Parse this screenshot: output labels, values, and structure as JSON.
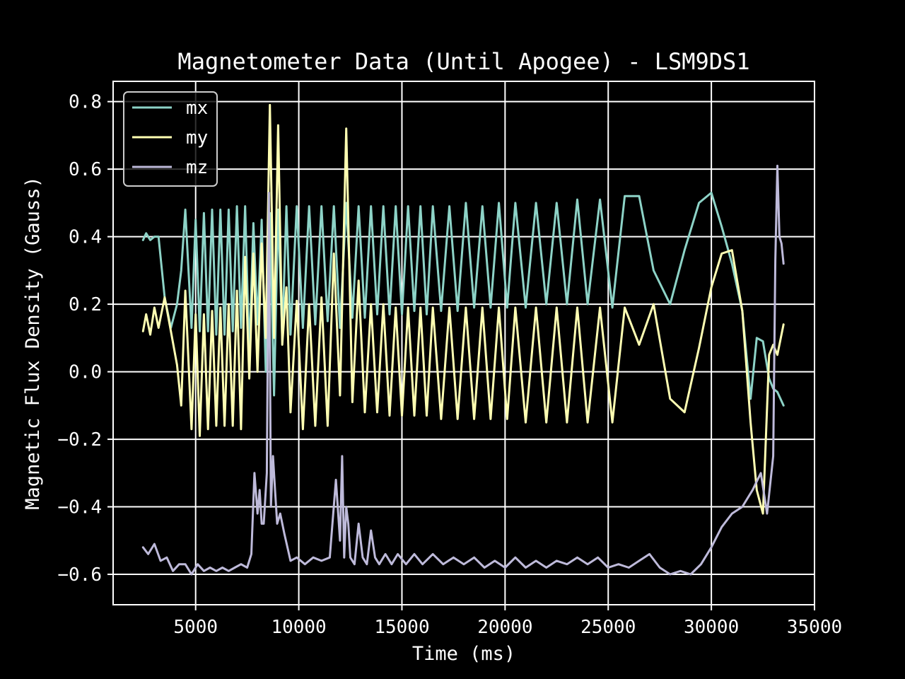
{
  "chart_data": {
    "type": "line",
    "title": "Magnetometer Data (Until Apogee) - LSM9DS1",
    "xlabel": "Time (ms)",
    "ylabel": "Magnetic Flux Density (Gauss)",
    "xlim": [
      1000,
      35000
    ],
    "ylim": [
      -0.69,
      0.86
    ],
    "grid": true,
    "legend_position": "top-left",
    "background": "#000000",
    "xticks": [
      {
        "value": 5000,
        "label": "5000"
      },
      {
        "value": 10000,
        "label": "10000"
      },
      {
        "value": 15000,
        "label": "15000"
      },
      {
        "value": 20000,
        "label": "20000"
      },
      {
        "value": 25000,
        "label": "25000"
      },
      {
        "value": 30000,
        "label": "30000"
      },
      {
        "value": 35000,
        "label": "35000"
      }
    ],
    "yticks": [
      {
        "value": 0.8,
        "label": "0.8"
      },
      {
        "value": 0.6,
        "label": "0.6"
      },
      {
        "value": 0.4,
        "label": "0.4"
      },
      {
        "value": 0.2,
        "label": "0.2"
      },
      {
        "value": 0.0,
        "label": "0.0"
      },
      {
        "value": -0.2,
        "label": "−0.2"
      },
      {
        "value": -0.4,
        "label": "−0.4"
      },
      {
        "value": -0.6,
        "label": "−0.6"
      }
    ],
    "series": [
      {
        "name": "mx",
        "color": "#8dd3c7",
        "x": [
          2450,
          2600,
          2800,
          3000,
          3200,
          3500,
          3800,
          4100,
          4300,
          4500,
          4800,
          5000,
          5200,
          5400,
          5600,
          5800,
          6000,
          6200,
          6400,
          6600,
          6800,
          7000,
          7200,
          7400,
          7600,
          7800,
          8000,
          8200,
          8400,
          8600,
          8800,
          9000,
          9200,
          9400,
          9600,
          9900,
          10200,
          10500,
          10800,
          11100,
          11400,
          11700,
          12000,
          12300,
          12600,
          12900,
          13200,
          13500,
          13800,
          14100,
          14400,
          14700,
          15000,
          15300,
          15600,
          15900,
          16200,
          16500,
          16900,
          17300,
          17700,
          18100,
          18500,
          18900,
          19300,
          19700,
          20100,
          20500,
          21000,
          21500,
          22000,
          22500,
          23000,
          23500,
          24000,
          24600,
          25200,
          25800,
          26500,
          27200,
          28000,
          28700,
          29400,
          30000,
          30500,
          31000,
          31500,
          31900,
          32200,
          32500,
          32800,
          33000,
          33200,
          33500
        ],
        "y": [
          0.39,
          0.41,
          0.39,
          0.4,
          0.4,
          0.22,
          0.13,
          0.2,
          0.3,
          0.48,
          0.13,
          0.45,
          0.12,
          0.47,
          0.12,
          0.48,
          0.11,
          0.48,
          0.11,
          0.48,
          0.12,
          0.49,
          0.13,
          0.49,
          0.05,
          0.44,
          0.14,
          0.45,
          0.0,
          0.47,
          -0.07,
          0.48,
          0.1,
          0.49,
          0.11,
          0.49,
          0.13,
          0.49,
          0.14,
          0.49,
          0.15,
          0.49,
          0.13,
          0.5,
          0.16,
          0.49,
          0.16,
          0.49,
          0.17,
          0.49,
          0.17,
          0.49,
          0.17,
          0.49,
          0.18,
          0.49,
          0.17,
          0.49,
          0.18,
          0.49,
          0.18,
          0.5,
          0.19,
          0.49,
          0.19,
          0.5,
          0.19,
          0.5,
          0.19,
          0.5,
          0.2,
          0.5,
          0.2,
          0.51,
          0.2,
          0.51,
          0.19,
          0.52,
          0.52,
          0.3,
          0.2,
          0.36,
          0.5,
          0.53,
          0.43,
          0.32,
          0.18,
          -0.08,
          0.1,
          0.09,
          -0.02,
          -0.05,
          -0.06,
          -0.1
        ]
      },
      {
        "name": "my",
        "color": "#ffffb3",
        "x": [
          2450,
          2600,
          2800,
          3000,
          3200,
          3500,
          3800,
          4100,
          4300,
          4500,
          4800,
          5000,
          5200,
          5400,
          5600,
          5800,
          6000,
          6200,
          6400,
          6600,
          6800,
          7000,
          7200,
          7400,
          7600,
          7800,
          8000,
          8200,
          8400,
          8600,
          8800,
          9000,
          9200,
          9400,
          9600,
          9900,
          10200,
          10500,
          10800,
          11100,
          11400,
          11700,
          12000,
          12300,
          12600,
          12900,
          13200,
          13500,
          13800,
          14100,
          14400,
          14700,
          15000,
          15300,
          15600,
          15900,
          16200,
          16500,
          16900,
          17300,
          17700,
          18100,
          18500,
          18900,
          19300,
          19700,
          20100,
          20500,
          21000,
          21500,
          22000,
          22500,
          23000,
          23500,
          24000,
          24600,
          25200,
          25800,
          26500,
          27200,
          28000,
          28700,
          29400,
          30000,
          30500,
          31000,
          31500,
          31900,
          32200,
          32500,
          32800,
          33000,
          33200,
          33500
        ],
        "y": [
          0.12,
          0.17,
          0.11,
          0.19,
          0.13,
          0.22,
          0.12,
          0.02,
          -0.1,
          0.24,
          -0.17,
          0.17,
          -0.19,
          0.17,
          -0.17,
          0.18,
          -0.16,
          0.19,
          -0.16,
          0.2,
          -0.16,
          0.24,
          -0.17,
          0.34,
          -0.02,
          0.35,
          0.0,
          0.38,
          0.1,
          0.79,
          0.1,
          0.73,
          0.08,
          0.25,
          -0.12,
          0.21,
          -0.17,
          0.2,
          -0.16,
          0.22,
          -0.16,
          0.35,
          -0.07,
          0.72,
          -0.09,
          0.27,
          -0.12,
          0.2,
          -0.12,
          0.2,
          -0.13,
          0.19,
          -0.13,
          0.19,
          -0.13,
          0.19,
          -0.13,
          0.19,
          -0.14,
          0.19,
          -0.14,
          0.19,
          -0.14,
          0.19,
          -0.14,
          0.19,
          -0.14,
          0.19,
          -0.15,
          0.19,
          -0.15,
          0.19,
          -0.15,
          0.19,
          -0.15,
          0.19,
          -0.15,
          0.19,
          0.08,
          0.2,
          -0.08,
          -0.12,
          0.07,
          0.25,
          0.35,
          0.36,
          0.18,
          -0.15,
          -0.35,
          -0.42,
          0.05,
          0.08,
          0.05,
          0.14
        ]
      },
      {
        "name": "mz",
        "color": "#bebada",
        "x": [
          2450,
          2700,
          3000,
          3300,
          3600,
          3900,
          4200,
          4500,
          4800,
          5100,
          5400,
          5700,
          6000,
          6300,
          6600,
          6900,
          7200,
          7500,
          7700,
          7850,
          8000,
          8100,
          8200,
          8300,
          8450,
          8550,
          8650,
          8750,
          8850,
          8950,
          9100,
          9300,
          9600,
          9900,
          10300,
          10700,
          11100,
          11500,
          11800,
          12000,
          12100,
          12200,
          12300,
          12400,
          12500,
          12700,
          12900,
          13100,
          13300,
          13500,
          13700,
          13900,
          14200,
          14500,
          14800,
          15200,
          15600,
          16000,
          16500,
          17000,
          17500,
          18000,
          18500,
          19000,
          19500,
          20000,
          20500,
          21000,
          21500,
          22000,
          22500,
          23000,
          23500,
          24000,
          24500,
          25000,
          25500,
          26000,
          26500,
          27000,
          27500,
          28000,
          28500,
          29000,
          29500,
          30000,
          30500,
          31000,
          31500,
          32000,
          32400,
          32700,
          33000,
          33100,
          33200,
          33300,
          33400,
          33500
        ],
        "y": [
          -0.52,
          -0.54,
          -0.51,
          -0.56,
          -0.55,
          -0.59,
          -0.57,
          -0.57,
          -0.6,
          -0.57,
          -0.59,
          -0.58,
          -0.59,
          -0.58,
          -0.59,
          -0.58,
          -0.57,
          -0.58,
          -0.54,
          -0.3,
          -0.42,
          -0.35,
          -0.45,
          -0.45,
          -0.3,
          0.53,
          -0.4,
          -0.25,
          -0.35,
          -0.45,
          -0.42,
          -0.48,
          -0.56,
          -0.55,
          -0.57,
          -0.55,
          -0.56,
          -0.55,
          -0.32,
          -0.5,
          -0.25,
          -0.55,
          -0.4,
          -0.45,
          -0.55,
          -0.57,
          -0.45,
          -0.55,
          -0.57,
          -0.47,
          -0.55,
          -0.57,
          -0.54,
          -0.57,
          -0.54,
          -0.57,
          -0.54,
          -0.57,
          -0.54,
          -0.57,
          -0.55,
          -0.57,
          -0.55,
          -0.58,
          -0.56,
          -0.58,
          -0.55,
          -0.58,
          -0.56,
          -0.58,
          -0.56,
          -0.57,
          -0.55,
          -0.57,
          -0.55,
          -0.58,
          -0.57,
          -0.58,
          -0.56,
          -0.54,
          -0.58,
          -0.6,
          -0.59,
          -0.6,
          -0.57,
          -0.52,
          -0.46,
          -0.42,
          -0.4,
          -0.35,
          -0.3,
          -0.42,
          -0.25,
          0.33,
          0.61,
          0.4,
          0.38,
          0.32
        ]
      }
    ]
  }
}
